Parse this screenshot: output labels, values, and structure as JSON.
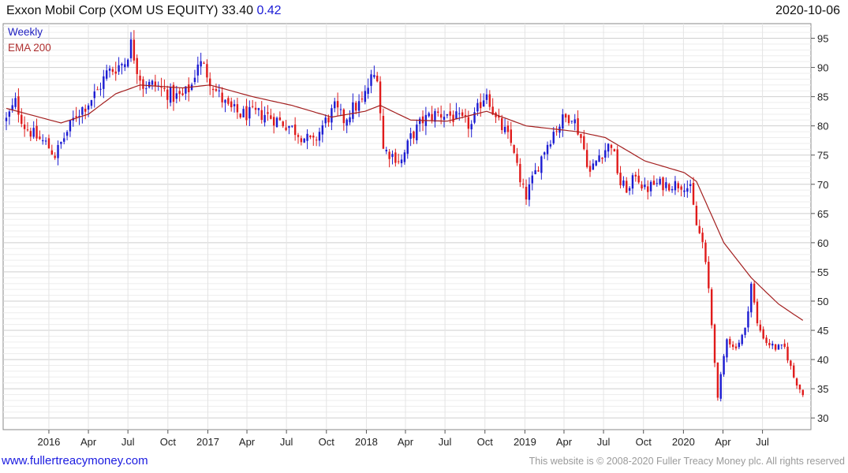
{
  "header": {
    "title": "Exxon Mobil Corp (XOM US EQUITY) 33.40",
    "change": "0.42",
    "date": "2020-10-06"
  },
  "footer": {
    "site": "www.fullertreacymoney.com",
    "copyright": "This website is © 2008-2020 Fuller Treacy Money plc. All rights reserved"
  },
  "colors": {
    "up": "#1c1cd2",
    "down": "#e01b1b",
    "ema": "#a31f1f",
    "grid": "#d9d9d9",
    "legend_weekly": "#2020c0",
    "legend_ema": "#b03030"
  },
  "chart_data": {
    "type": "candlestick",
    "legend": [
      "Weekly",
      "EMA 200"
    ],
    "legend_position": "top-left",
    "grid": true,
    "yaxis_side": "right",
    "ylim": [
      28,
      97.5
    ],
    "y_ticks": [
      30,
      35,
      40,
      45,
      50,
      55,
      60,
      65,
      70,
      75,
      80,
      85,
      90,
      95
    ],
    "x_start": "2015-09-25",
    "x_end": "2020-10-06",
    "x_ticks": [
      {
        "date": "2016-01-01",
        "label": "2016"
      },
      {
        "date": "2016-04-01",
        "label": "Apr"
      },
      {
        "date": "2016-07-01",
        "label": "Jul"
      },
      {
        "date": "2016-10-01",
        "label": "Oct"
      },
      {
        "date": "2017-01-01",
        "label": "2017"
      },
      {
        "date": "2017-04-01",
        "label": "Apr"
      },
      {
        "date": "2017-07-01",
        "label": "Jul"
      },
      {
        "date": "2017-10-01",
        "label": "Oct"
      },
      {
        "date": "2018-01-01",
        "label": "2018"
      },
      {
        "date": "2018-04-01",
        "label": "Apr"
      },
      {
        "date": "2018-07-01",
        "label": "Jul"
      },
      {
        "date": "2018-10-01",
        "label": "Oct"
      },
      {
        "date": "2019-01-01",
        "label": "2019"
      },
      {
        "date": "2019-04-01",
        "label": "Apr"
      },
      {
        "date": "2019-07-01",
        "label": "Jul"
      },
      {
        "date": "2019-10-01",
        "label": "Oct"
      },
      {
        "date": "2020-01-01",
        "label": "2020"
      },
      {
        "date": "2020-04-01",
        "label": "Apr"
      },
      {
        "date": "2020-07-01",
        "label": "Jul"
      }
    ],
    "price_anchors": [
      [
        "2015-09-25",
        81
      ],
      [
        "2015-10-16",
        84
      ],
      [
        "2015-11-06",
        80
      ],
      [
        "2015-12-04",
        78
      ],
      [
        "2015-12-25",
        77
      ],
      [
        "2016-01-15",
        75
      ],
      [
        "2016-02-05",
        78
      ],
      [
        "2016-03-04",
        82
      ],
      [
        "2016-04-01",
        84
      ],
      [
        "2016-04-22",
        86
      ],
      [
        "2016-05-13",
        89
      ],
      [
        "2016-06-03",
        90
      ],
      [
        "2016-06-24",
        91
      ],
      [
        "2016-07-08",
        94
      ],
      [
        "2016-07-22",
        90
      ],
      [
        "2016-08-05",
        87
      ],
      [
        "2016-09-02",
        87
      ],
      [
        "2016-09-23",
        86
      ],
      [
        "2016-10-14",
        85
      ],
      [
        "2016-11-04",
        85
      ],
      [
        "2016-11-25",
        87
      ],
      [
        "2016-12-09",
        91
      ],
      [
        "2016-12-23",
        90
      ],
      [
        "2017-01-20",
        86
      ],
      [
        "2017-02-17",
        83
      ],
      [
        "2017-03-17",
        82
      ],
      [
        "2017-04-14",
        82
      ],
      [
        "2017-05-12",
        82
      ],
      [
        "2017-06-09",
        81
      ],
      [
        "2017-07-07",
        80
      ],
      [
        "2017-08-11",
        78
      ],
      [
        "2017-09-01",
        77
      ],
      [
        "2017-09-22",
        80
      ],
      [
        "2017-10-20",
        83
      ],
      [
        "2017-11-10",
        81
      ],
      [
        "2017-12-01",
        83
      ],
      [
        "2017-12-22",
        84
      ],
      [
        "2018-01-12",
        88
      ],
      [
        "2018-01-26",
        89
      ],
      [
        "2018-02-09",
        76
      ],
      [
        "2018-03-02",
        75
      ],
      [
        "2018-03-23",
        74
      ],
      [
        "2018-04-13",
        78
      ],
      [
        "2018-05-11",
        81
      ],
      [
        "2018-06-08",
        82
      ],
      [
        "2018-07-06",
        82
      ],
      [
        "2018-08-03",
        81
      ],
      [
        "2018-08-31",
        80
      ],
      [
        "2018-09-21",
        84
      ],
      [
        "2018-10-05",
        86
      ],
      [
        "2018-10-26",
        81
      ],
      [
        "2018-11-16",
        79
      ],
      [
        "2018-12-07",
        76
      ],
      [
        "2018-12-21",
        70
      ],
      [
        "2019-01-04",
        68
      ],
      [
        "2019-01-25",
        72
      ],
      [
        "2019-02-15",
        76
      ],
      [
        "2019-03-08",
        79
      ],
      [
        "2019-03-29",
        81
      ],
      [
        "2019-04-19",
        82
      ],
      [
        "2019-05-10",
        78
      ],
      [
        "2019-05-31",
        72
      ],
      [
        "2019-06-21",
        75
      ],
      [
        "2019-07-19",
        77
      ],
      [
        "2019-08-09",
        70
      ],
      [
        "2019-08-30",
        69
      ],
      [
        "2019-09-13",
        72
      ],
      [
        "2019-10-04",
        69
      ],
      [
        "2019-10-25",
        70
      ],
      [
        "2019-11-15",
        70
      ],
      [
        "2019-12-13",
        70
      ],
      [
        "2020-01-03",
        70
      ],
      [
        "2020-01-17",
        69
      ],
      [
        "2020-01-31",
        63
      ],
      [
        "2020-02-14",
        60
      ],
      [
        "2020-02-28",
        52
      ],
      [
        "2020-03-13",
        40
      ],
      [
        "2020-03-20",
        33
      ],
      [
        "2020-03-27",
        37
      ],
      [
        "2020-04-10",
        44
      ],
      [
        "2020-04-24",
        42
      ],
      [
        "2020-05-08",
        43
      ],
      [
        "2020-05-22",
        45
      ],
      [
        "2020-06-05",
        53
      ],
      [
        "2020-06-19",
        46
      ],
      [
        "2020-07-10",
        43
      ],
      [
        "2020-07-31",
        42
      ],
      [
        "2020-08-21",
        42
      ],
      [
        "2020-09-11",
        37
      ],
      [
        "2020-09-25",
        35
      ],
      [
        "2020-10-06",
        33.4
      ]
    ],
    "ema200_anchors": [
      [
        "2015-09-25",
        83
      ],
      [
        "2016-01-29",
        80.5
      ],
      [
        "2016-04-01",
        82
      ],
      [
        "2016-06-03",
        85.5
      ],
      [
        "2016-07-29",
        87
      ],
      [
        "2016-11-04",
        86.5
      ],
      [
        "2017-01-06",
        87
      ],
      [
        "2017-04-14",
        85
      ],
      [
        "2017-07-14",
        83.5
      ],
      [
        "2017-10-13",
        81.5
      ],
      [
        "2017-12-29",
        82.5
      ],
      [
        "2018-02-02",
        83.5
      ],
      [
        "2018-04-13",
        81
      ],
      [
        "2018-07-06",
        80.8
      ],
      [
        "2018-10-05",
        82.5
      ],
      [
        "2019-01-04",
        80
      ],
      [
        "2019-05-03",
        79
      ],
      [
        "2019-07-05",
        78
      ],
      [
        "2019-10-04",
        74
      ],
      [
        "2020-01-03",
        72
      ],
      [
        "2020-01-31",
        70.5
      ],
      [
        "2020-04-03",
        60
      ],
      [
        "2020-06-05",
        54
      ],
      [
        "2020-08-07",
        49.5
      ],
      [
        "2020-10-06",
        46.5
      ]
    ]
  }
}
